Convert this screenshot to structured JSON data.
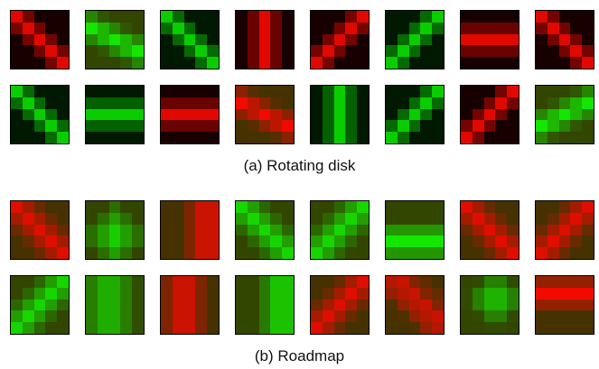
{
  "figure": {
    "panels": [
      {
        "caption": "(a) Rotating disk",
        "rows": [
          [
            {
              "color": "red",
              "pattern": "diag-down"
            },
            {
              "color": "green",
              "pattern": "shallow-down"
            },
            {
              "color": "green",
              "pattern": "diag-down"
            },
            {
              "color": "red",
              "pattern": "vertical"
            },
            {
              "color": "red",
              "pattern": "diag-up"
            },
            {
              "color": "green",
              "pattern": "diag-up"
            },
            {
              "color": "red",
              "pattern": "horizontal"
            },
            {
              "color": "red",
              "pattern": "diag-down"
            }
          ],
          [
            {
              "color": "green",
              "pattern": "diag-down"
            },
            {
              "color": "green",
              "pattern": "horizontal"
            },
            {
              "color": "red",
              "pattern": "horizontal"
            },
            {
              "color": "red",
              "pattern": "shallow-down"
            },
            {
              "color": "green",
              "pattern": "vertical"
            },
            {
              "color": "green",
              "pattern": "diag-up"
            },
            {
              "color": "red",
              "pattern": "diag-up"
            },
            {
              "color": "green",
              "pattern": "shallow-up"
            }
          ]
        ]
      },
      {
        "caption": "(b) Roadmap",
        "rows": [
          [
            {
              "color": "red",
              "pattern": "diag-down-soft"
            },
            {
              "color": "green",
              "pattern": "blob-center"
            },
            {
              "color": "red",
              "pattern": "vertical-right"
            },
            {
              "color": "green",
              "pattern": "diag-down-soft"
            },
            {
              "color": "green",
              "pattern": "diag-up-soft"
            },
            {
              "color": "green",
              "pattern": "horizontal-low"
            },
            {
              "color": "red",
              "pattern": "diag-down-soft"
            },
            {
              "color": "red",
              "pattern": "diag-up-soft"
            }
          ],
          [
            {
              "color": "green",
              "pattern": "diag-up-soft"
            },
            {
              "color": "green",
              "pattern": "vertical-soft"
            },
            {
              "color": "red",
              "pattern": "vertical-left"
            },
            {
              "color": "green",
              "pattern": "vertical-right"
            },
            {
              "color": "red",
              "pattern": "diag-up-soft"
            },
            {
              "color": "red",
              "pattern": "diag-down-blotch"
            },
            {
              "color": "green",
              "pattern": "blob-top"
            },
            {
              "color": "red",
              "pattern": "horizontal-top"
            }
          ]
        ]
      }
    ]
  }
}
